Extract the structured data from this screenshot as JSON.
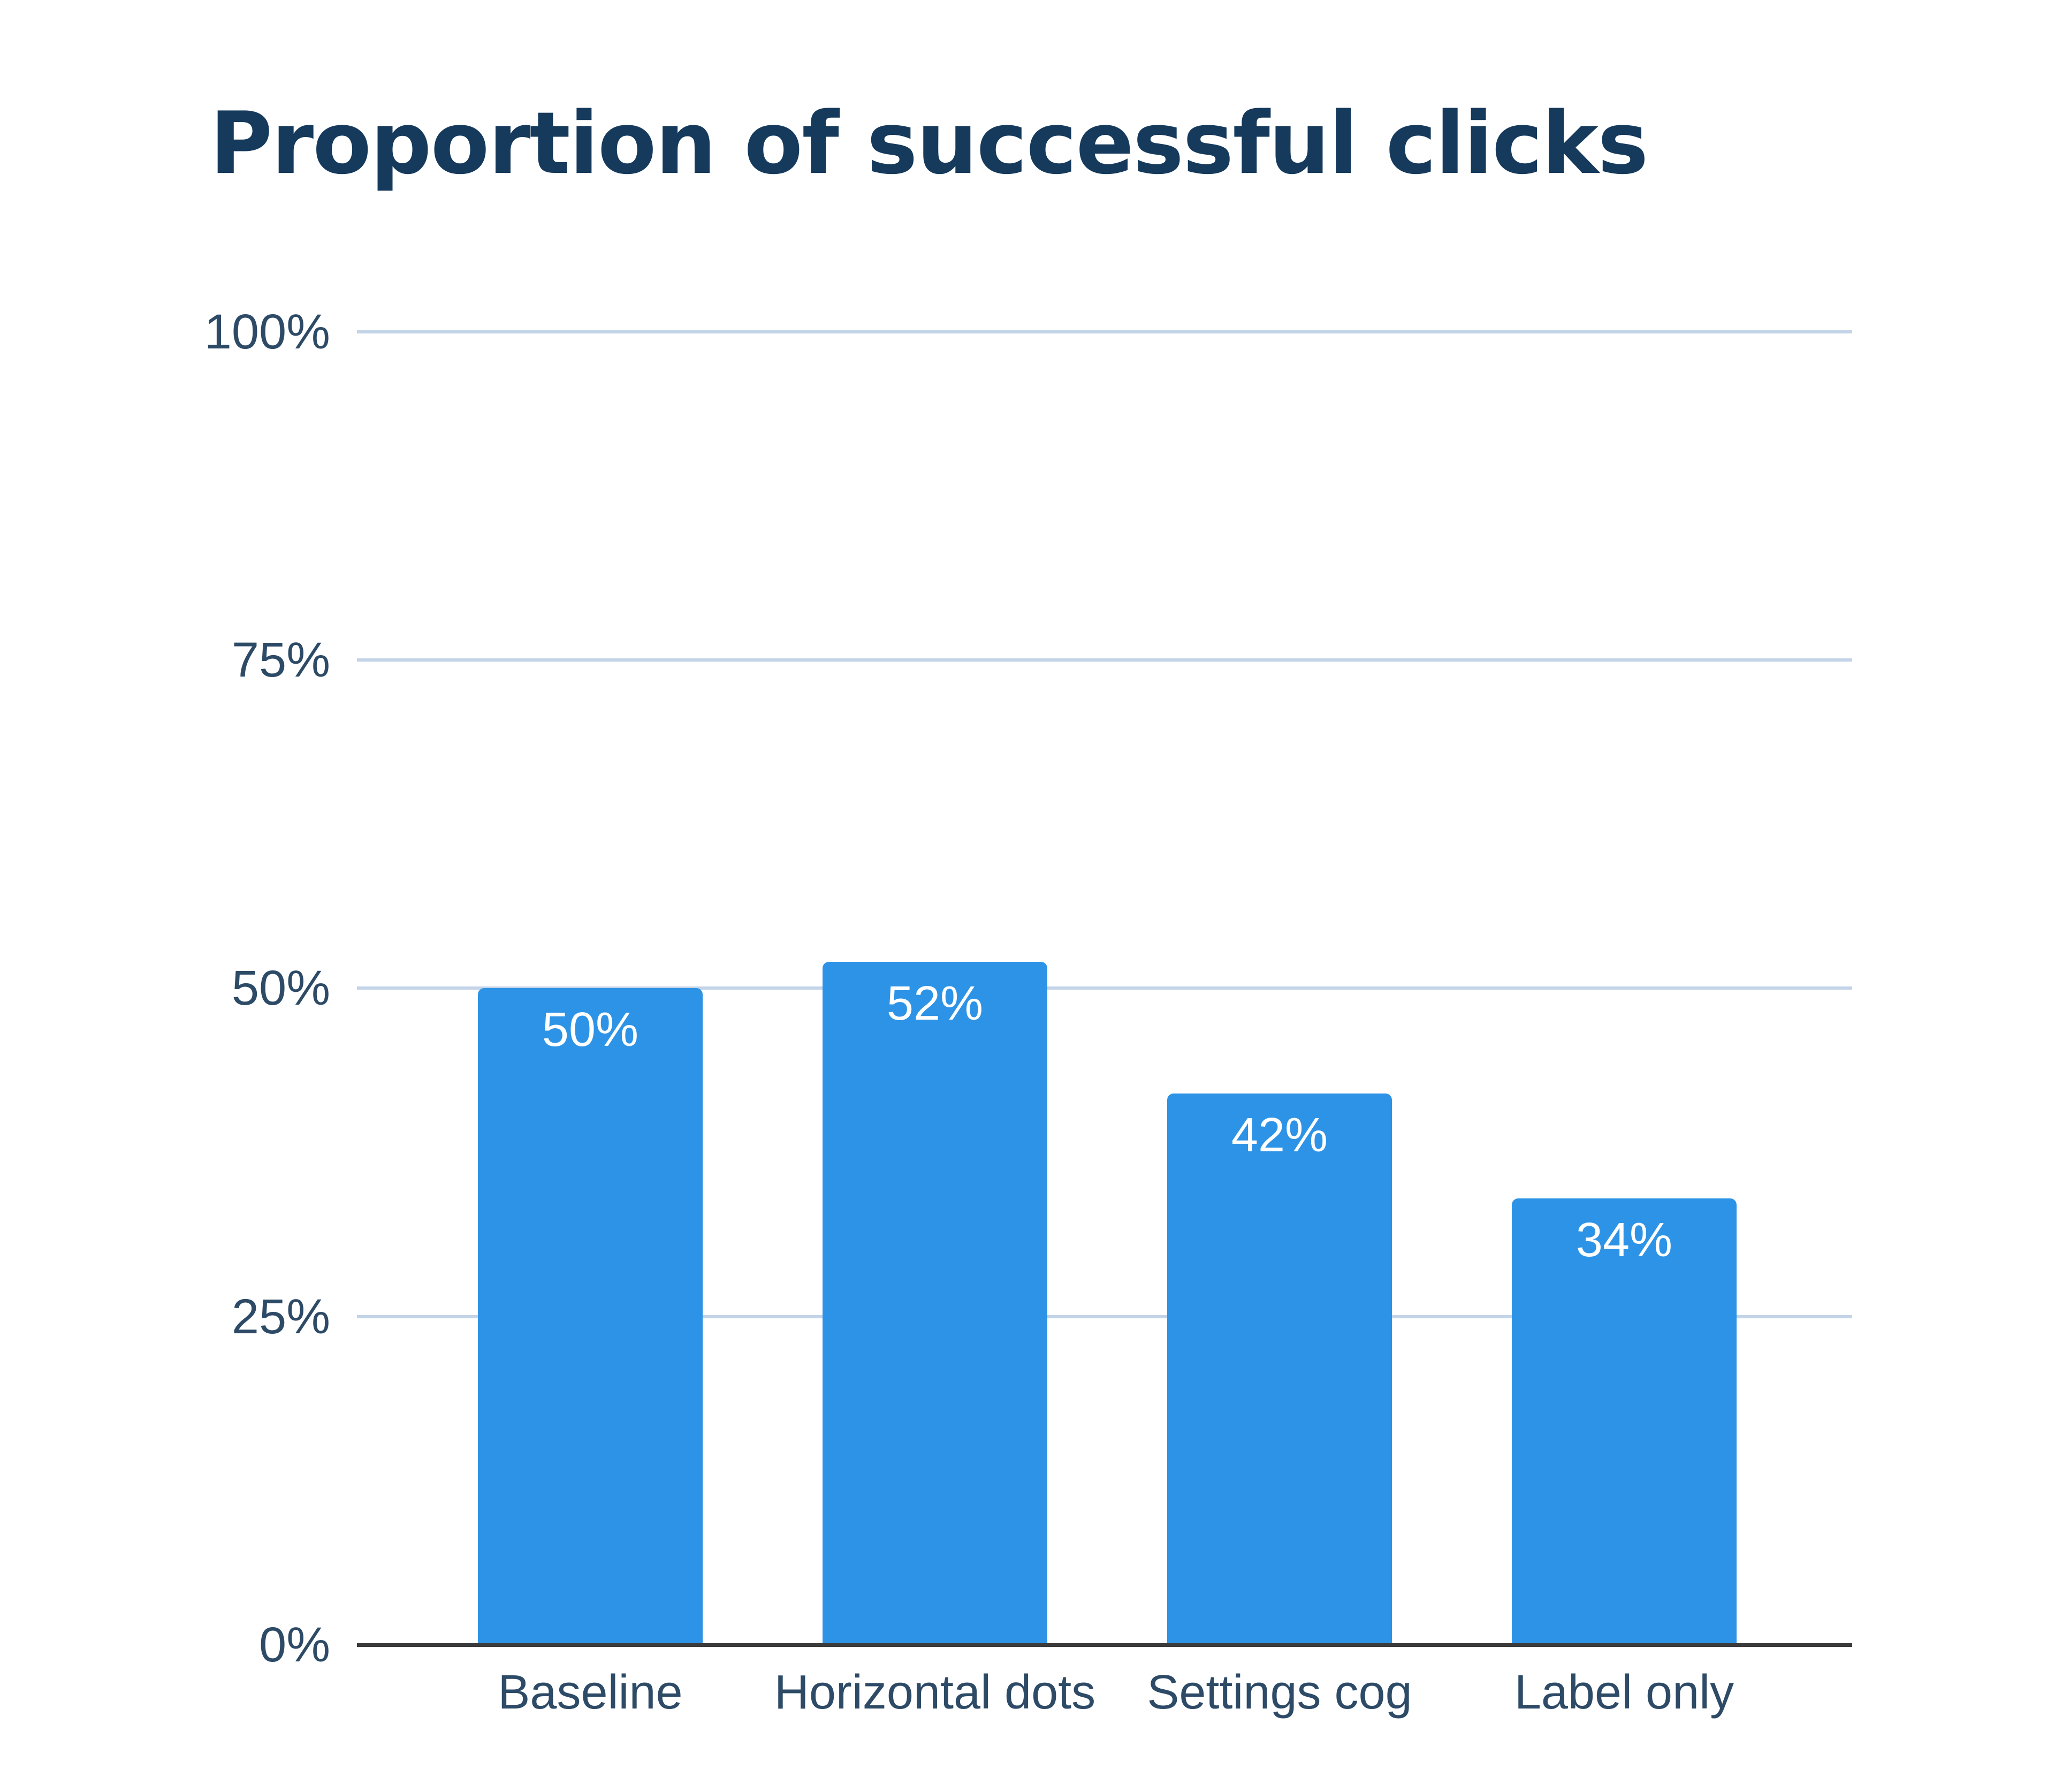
{
  "title": "Proportion of successful clicks",
  "colors": {
    "title": "#163a5c",
    "bar": "#2d93e6",
    "gridline": "#c4d4e8",
    "axis": "#3b3b3b",
    "tick_text": "#2d4a66",
    "bar_label_text": "#ffffff"
  },
  "y_axis": {
    "ticks": [
      "0%",
      "25%",
      "50%",
      "75%",
      "100%"
    ]
  },
  "x_axis": {
    "categories": [
      "Baseline",
      "Horizontal dots",
      "Settings cog",
      "Label only"
    ]
  },
  "bars": [
    {
      "category": "Baseline",
      "value": 50,
      "label": "50%"
    },
    {
      "category": "Horizontal dots",
      "value": 52,
      "label": "52%"
    },
    {
      "category": "Settings cog",
      "value": 42,
      "label": "42%"
    },
    {
      "category": "Label only",
      "value": 34,
      "label": "34%"
    }
  ],
  "chart_data": {
    "type": "bar",
    "title": "Proportion of successful clicks",
    "categories": [
      "Baseline",
      "Horizontal dots",
      "Settings cog",
      "Label only"
    ],
    "values": [
      50,
      52,
      42,
      34
    ],
    "value_labels": [
      "50%",
      "52%",
      "42%",
      "34%"
    ],
    "xlabel": "",
    "ylabel": "",
    "ylim": [
      0,
      100
    ],
    "yticks": [
      0,
      25,
      50,
      75,
      100
    ],
    "ytick_labels": [
      "0%",
      "25%",
      "50%",
      "75%",
      "100%"
    ],
    "grid": true,
    "legend": null
  }
}
